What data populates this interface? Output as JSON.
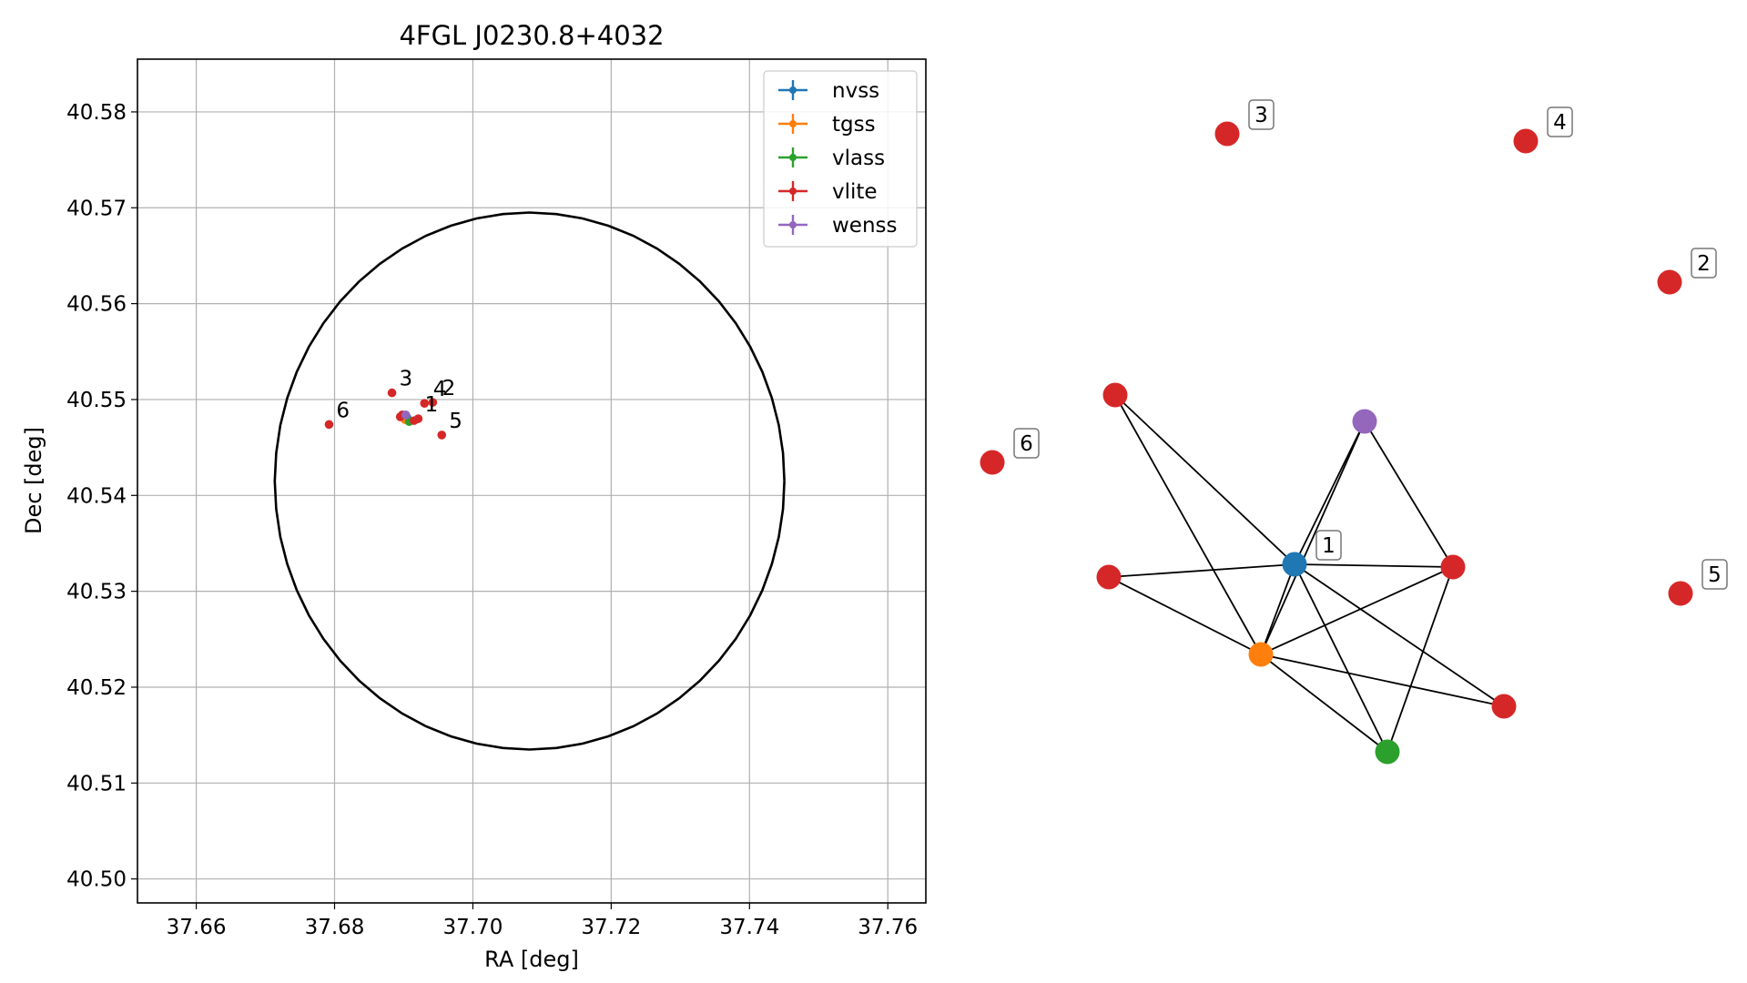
{
  "chart_data": [
    {
      "type": "scatter",
      "title": "4FGL J0230.8+4032",
      "xlabel": "RA [deg]",
      "ylabel": "Dec [deg]",
      "xlim": [
        37.6515,
        37.7655
      ],
      "ylim": [
        40.4975,
        40.5855
      ],
      "xticks": [
        37.66,
        37.68,
        37.7,
        37.72,
        37.74,
        37.76
      ],
      "yticks": [
        40.5,
        40.51,
        40.52,
        40.53,
        40.54,
        40.55,
        40.56,
        40.57,
        40.58
      ],
      "xtick_labels": [
        "37.66",
        "37.68",
        "37.70",
        "37.72",
        "37.74",
        "37.76"
      ],
      "ytick_labels": [
        "40.50",
        "40.51",
        "40.52",
        "40.53",
        "40.54",
        "40.55",
        "40.56",
        "40.57",
        "40.58"
      ],
      "grid": true,
      "legend_position": "top-right",
      "series": [
        {
          "name": "nvss",
          "color": "#1f77b4",
          "points": [
            {
              "x": 37.6905,
              "y": 40.5481
            }
          ]
        },
        {
          "name": "tgss",
          "color": "#ff7f0e",
          "points": [
            {
              "x": 37.6902,
              "y": 40.5479
            }
          ]
        },
        {
          "name": "vlass",
          "color": "#2ca02c",
          "points": [
            {
              "x": 37.6908,
              "y": 40.5477
            }
          ]
        },
        {
          "name": "vlite",
          "color": "#d62728",
          "points": [
            {
              "x": 37.6921,
              "y": 40.548
            },
            {
              "x": 37.6942,
              "y": 40.5497
            },
            {
              "x": 37.6883,
              "y": 40.5507
            },
            {
              "x": 37.693,
              "y": 40.5496
            },
            {
              "x": 37.6955,
              "y": 40.5463
            },
            {
              "x": 37.6792,
              "y": 40.5474
            },
            {
              "x": 37.6898,
              "y": 40.5484
            },
            {
              "x": 37.6895,
              "y": 40.5482
            },
            {
              "x": 37.6915,
              "y": 40.5478
            }
          ]
        },
        {
          "name": "wenss",
          "color": "#9467bd",
          "points": [
            {
              "x": 37.6903,
              "y": 40.5484
            }
          ]
        }
      ],
      "point_labels": [
        {
          "text": "1",
          "x": 37.692,
          "y": 40.548
        },
        {
          "text": "2",
          "x": 37.6945,
          "y": 40.5497
        },
        {
          "text": "3",
          "x": 37.6883,
          "y": 40.5507
        },
        {
          "text": "4",
          "x": 37.6932,
          "y": 40.5496
        },
        {
          "text": "5",
          "x": 37.6955,
          "y": 40.5463
        },
        {
          "text": "6",
          "x": 37.6792,
          "y": 40.5474
        }
      ],
      "circle": {
        "center_ra": 37.7082,
        "center_dec": 40.5415,
        "radius_deg": 0.028
      }
    },
    {
      "type": "network",
      "nodes": [
        {
          "id": "n1",
          "color": "#1f77b4",
          "label": "1"
        },
        {
          "id": "t1",
          "color": "#ff7f0e",
          "label": ""
        },
        {
          "id": "v1",
          "color": "#2ca02c",
          "label": ""
        },
        {
          "id": "w1",
          "color": "#9467bd",
          "label": ""
        },
        {
          "id": "r_a",
          "color": "#d62728",
          "label": ""
        },
        {
          "id": "r_b",
          "color": "#d62728",
          "label": ""
        },
        {
          "id": "r_c",
          "color": "#d62728",
          "label": ""
        },
        {
          "id": "r_d",
          "color": "#d62728",
          "label": ""
        },
        {
          "id": "r2",
          "color": "#d62728",
          "label": "2"
        },
        {
          "id": "r3",
          "color": "#d62728",
          "label": "3"
        },
        {
          "id": "r4",
          "color": "#d62728",
          "label": "4"
        },
        {
          "id": "r5",
          "color": "#d62728",
          "label": "5"
        },
        {
          "id": "r6",
          "color": "#d62728",
          "label": "6"
        }
      ],
      "edges": [
        [
          "r_a",
          "n1"
        ],
        [
          "r_a",
          "t1"
        ],
        [
          "w1",
          "n1"
        ],
        [
          "w1",
          "t1"
        ],
        [
          "w1",
          "r_c"
        ],
        [
          "r_b",
          "n1"
        ],
        [
          "r_b",
          "t1"
        ],
        [
          "n1",
          "r_c"
        ],
        [
          "n1",
          "t1"
        ],
        [
          "n1",
          "v1"
        ],
        [
          "n1",
          "r_d"
        ],
        [
          "t1",
          "r_c"
        ],
        [
          "t1",
          "v1"
        ],
        [
          "t1",
          "r_d"
        ],
        [
          "r_c",
          "v1"
        ]
      ]
    }
  ]
}
